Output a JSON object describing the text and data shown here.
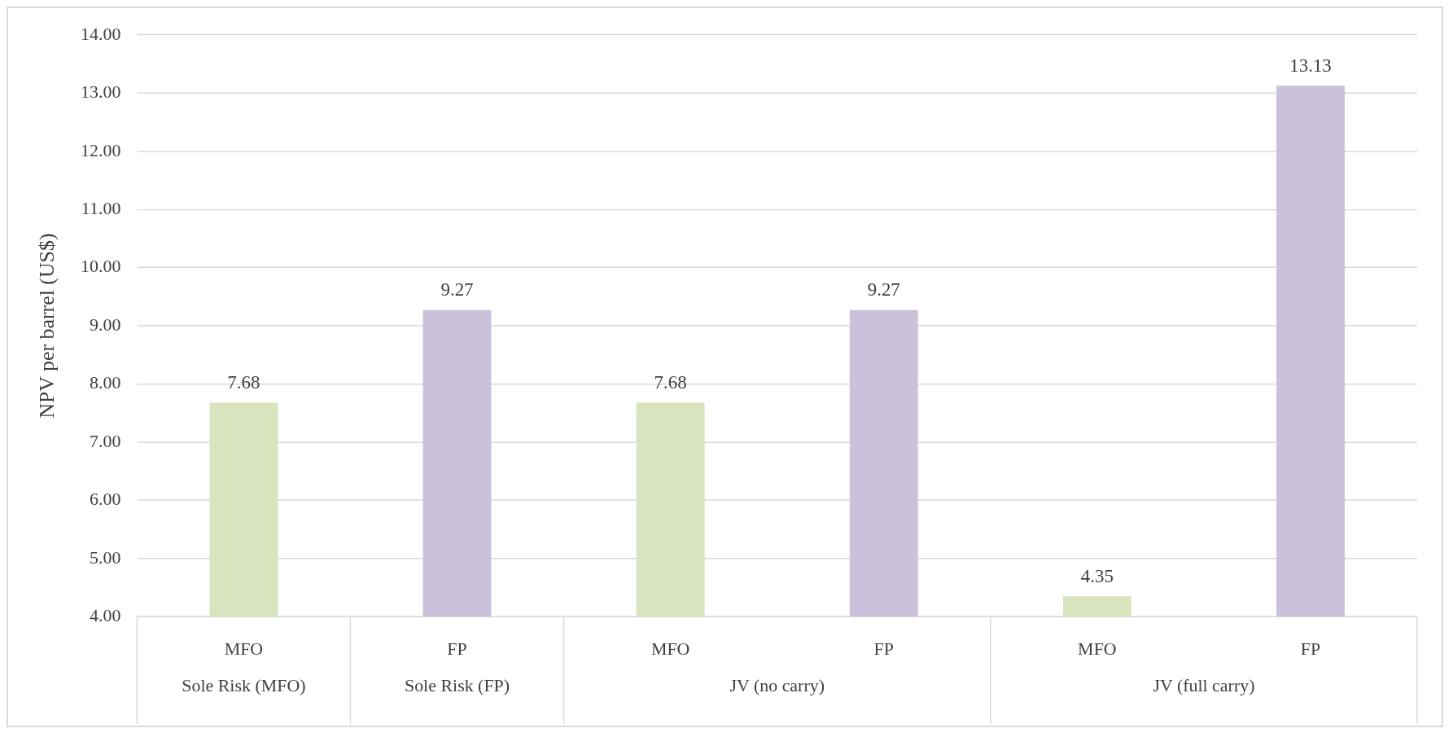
{
  "chart_data": {
    "type": "bar",
    "ylabel": "NPV per barrel (US$)",
    "categories": [
      "MFO",
      "FP",
      "MFO",
      "FP",
      "MFO",
      "FP"
    ],
    "values": [
      7.68,
      9.27,
      7.68,
      9.27,
      4.35,
      13.13
    ],
    "colors": [
      "#d7e4bd",
      "#ccc1da",
      "#d7e4bd",
      "#ccc1da",
      "#d7e4bd",
      "#ccc1da"
    ],
    "ylim": [
      4,
      14
    ],
    "yticks": [
      {
        "value": 4,
        "label": "4.00"
      },
      {
        "value": 5,
        "label": "5.00"
      },
      {
        "value": 6,
        "label": "6.00"
      },
      {
        "value": 7,
        "label": "7.00"
      },
      {
        "value": 8,
        "label": "8.00"
      },
      {
        "value": 9,
        "label": "9.00"
      },
      {
        "value": 10,
        "label": "10.00"
      },
      {
        "value": 11,
        "label": "11.00"
      },
      {
        "value": 12,
        "label": "12.00"
      },
      {
        "value": 13,
        "label": "13.00"
      },
      {
        "value": 14,
        "label": "14.00"
      }
    ],
    "grid": "y",
    "data_labels": true,
    "annotations": [
      "Sole Risk (MFO)",
      "Sole Risk (FP)",
      "JV (no carry)",
      "JV (full carry)"
    ]
  }
}
